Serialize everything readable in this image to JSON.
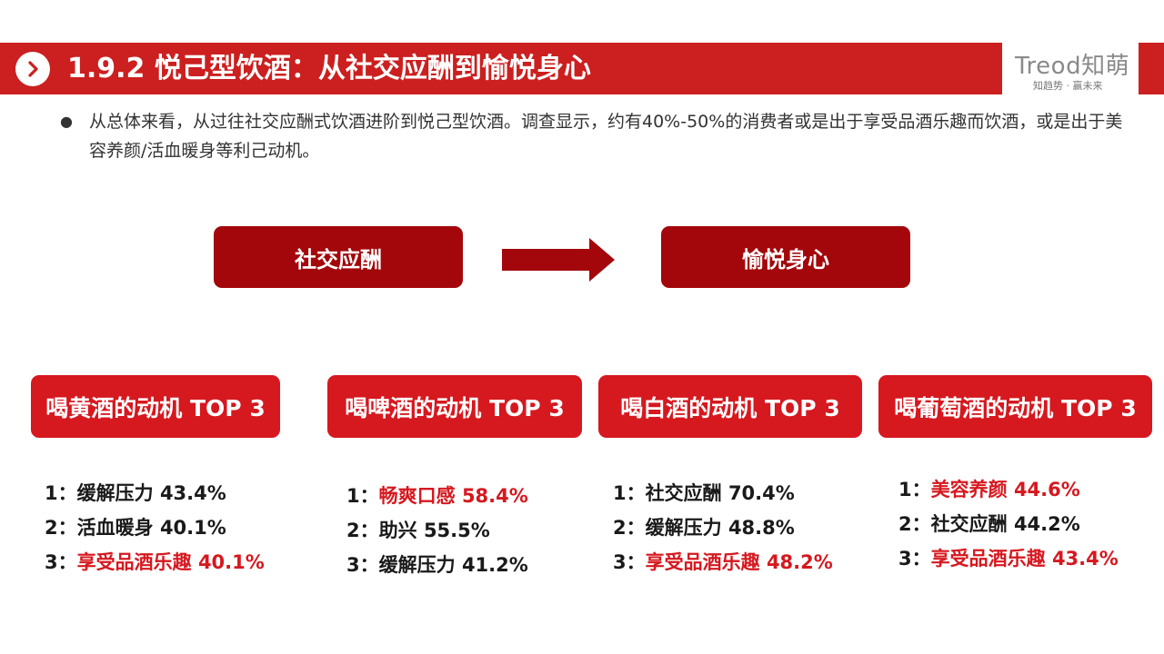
{
  "header": {
    "title": "1.9.2 悦己型饮酒：从社交应酬到愉悦身心",
    "icon": "chevron-right-icon"
  },
  "logo": {
    "brand": "Treod知萌",
    "tagline": "知趋势 · 赢未来"
  },
  "intro": {
    "text": "从总体来看，从过往社交应酬式饮酒进阶到悦己型饮酒。调查显示，约有40%-50%的消费者或是出于享受品酒乐趣而饮酒，或是出于美容养颜/活血暖身等利己动机。"
  },
  "flow": {
    "from": "社交应酬",
    "to": "愉悦身心"
  },
  "colors": {
    "header": "#cc1f1f",
    "pill": "#a3070b",
    "category": "#d6181f",
    "highlight": "#d6181f"
  },
  "categories": [
    {
      "title": "喝黄酒的动机 TOP 3",
      "items": [
        {
          "rank": "1：",
          "label": "缓解压力",
          "value": "43.4%",
          "highlight": false
        },
        {
          "rank": "2：",
          "label": "活血暖身",
          "value": "40.1%",
          "highlight": false
        },
        {
          "rank": "3：",
          "label": "享受品酒乐趣",
          "value": " 40.1%",
          "highlight": true
        }
      ]
    },
    {
      "title": "喝啤酒的动机 TOP 3",
      "items": [
        {
          "rank": "1：",
          "label": "畅爽口感",
          "value": "58.4%",
          "highlight": true
        },
        {
          "rank": "2：",
          "label": "助兴",
          "value": "55.5%",
          "highlight": false
        },
        {
          "rank": "3：",
          "label": "缓解压力",
          "value": "41.2%",
          "highlight": false
        }
      ]
    },
    {
      "title": "喝白酒的动机 TOP 3",
      "items": [
        {
          "rank": "1：",
          "label": "社交应酬",
          "value": "70.4%",
          "highlight": false
        },
        {
          "rank": "2：",
          "label": "缓解压力",
          "value": "48.8%",
          "highlight": false
        },
        {
          "rank": "3：",
          "label": "享受品酒乐趣",
          "value": "48.2%",
          "highlight": true
        }
      ]
    },
    {
      "title": "喝葡萄酒的动机 TOP 3",
      "items": [
        {
          "rank": "1：",
          "label": "美容养颜",
          "value": "44.6%",
          "highlight": true
        },
        {
          "rank": "2：",
          "label": "社交应酬",
          "value": "44.2%",
          "highlight": false
        },
        {
          "rank": "3：",
          "label": "享受品酒乐趣",
          "value": "43.4%",
          "highlight": true
        }
      ]
    }
  ]
}
